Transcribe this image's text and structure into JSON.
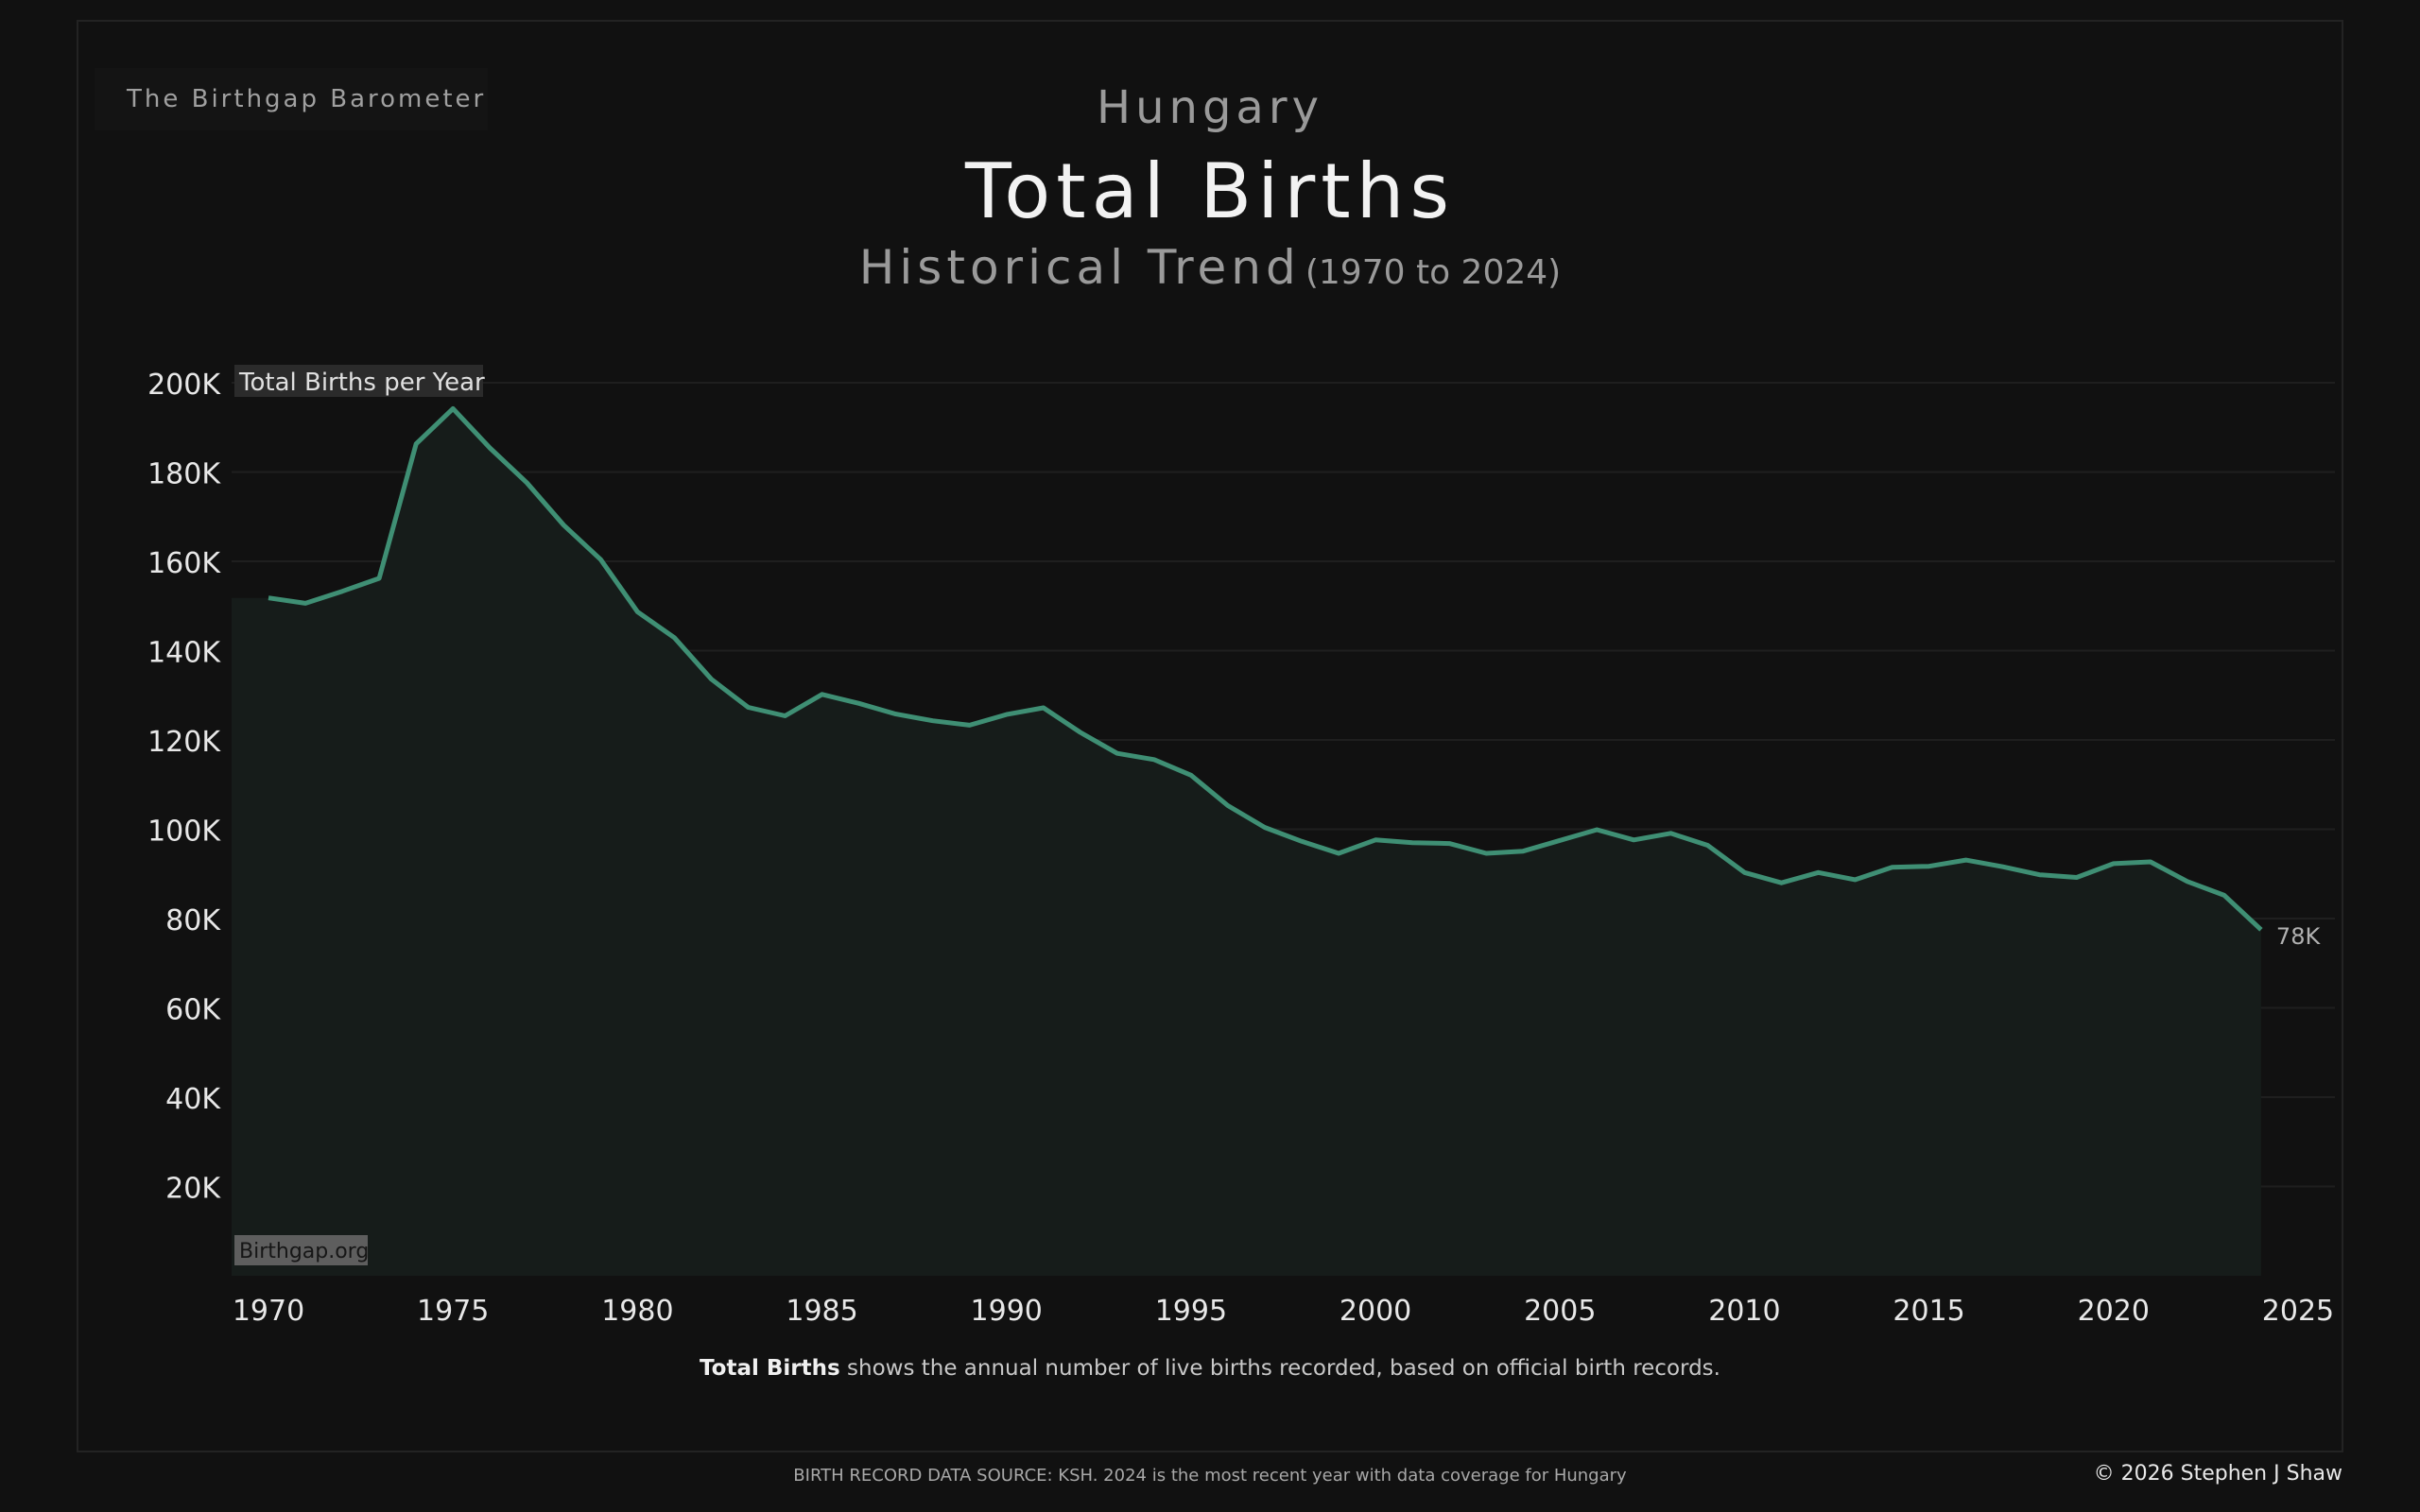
{
  "header": {
    "brand": "The Birthgap Barometer",
    "country": "Hungary",
    "title": "Total Births",
    "subtitle": "Historical Trend",
    "subtitle_range": "(1970 to 2024)"
  },
  "chart_data": {
    "type": "area",
    "title": "Total Births",
    "ylabel": "Total Births per Year",
    "watermark": "Birthgap.org",
    "last_label": "78K",
    "xlim": [
      1969,
      2026
    ],
    "ylim": [
      0,
      200000
    ],
    "x_ticks": [
      1970,
      1975,
      1980,
      1985,
      1990,
      1995,
      2000,
      2005,
      2010,
      2015,
      2020,
      2025
    ],
    "y_ticks": [
      20000,
      40000,
      60000,
      80000,
      100000,
      120000,
      140000,
      160000,
      180000,
      200000
    ],
    "y_tick_labels": [
      "20K",
      "40K",
      "60K",
      "80K",
      "100K",
      "120K",
      "140K",
      "160K",
      "180K",
      "200K"
    ],
    "grid": true,
    "line_color": "#3f8f74",
    "fill_color": "#161c1a",
    "x": [
      1970,
      1971,
      1972,
      1973,
      1974,
      1975,
      1976,
      1977,
      1978,
      1979,
      1980,
      1981,
      1982,
      1983,
      1984,
      1985,
      1986,
      1987,
      1988,
      1989,
      1990,
      1991,
      1992,
      1993,
      1994,
      1995,
      1996,
      1997,
      1998,
      1999,
      2000,
      2001,
      2002,
      2003,
      2004,
      2005,
      2006,
      2007,
      2008,
      2009,
      2010,
      2011,
      2012,
      2013,
      2014,
      2015,
      2016,
      2017,
      2018,
      2019,
      2020,
      2021,
      2022,
      2023,
      2024
    ],
    "series": [
      {
        "values": [
          151800,
          150600,
          153300,
          156200,
          186300,
          194200,
          185400,
          177600,
          168100,
          160400,
          148700,
          142900,
          133600,
          127300,
          125400,
          130200,
          128200,
          125800,
          124300,
          123300,
          125700,
          127200,
          121700,
          117000,
          115600,
          112100,
          105300,
          100400,
          97300,
          94600,
          97600,
          97000,
          96800,
          94600,
          95100,
          97500,
          99900,
          97600,
          99100,
          96400,
          90300,
          88000,
          90300,
          88700,
          91500,
          91700,
          93100,
          91600,
          89800,
          89200,
          92300,
          92700,
          88300,
          85200,
          77500
        ]
      }
    ]
  },
  "footnote": {
    "bold": "Total Births",
    "text": " shows the annual number of live births recorded, based on official birth records."
  },
  "footer": {
    "source": "BIRTH RECORD DATA SOURCE: KSH. 2024 is the most recent year with data coverage for Hungary",
    "copyright": "© 2026 Stephen J Shaw"
  }
}
